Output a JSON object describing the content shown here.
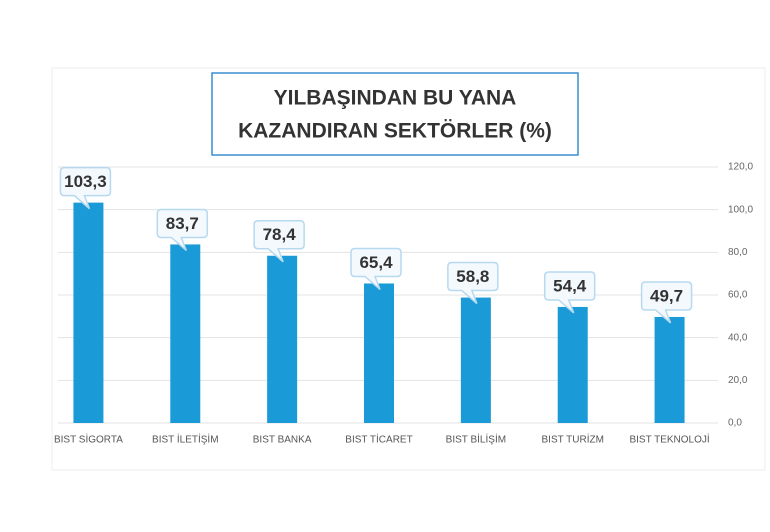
{
  "chart_data": {
    "type": "bar",
    "title": [
      "YILBAŞINDAN BU YANA",
      "KAZANDIRAN SEKTÖRLER  (%)"
    ],
    "categories": [
      "BIST SİGORTA",
      "BIST İLETİŞİM",
      "BIST BANKA",
      "BIST TİCARET",
      "BIST BİLİŞİM",
      "BIST TURİZM",
      "BIST TEKNOLOJİ"
    ],
    "values": [
      103.3,
      83.7,
      78.4,
      65.4,
      58.8,
      54.4,
      49.7
    ],
    "value_labels": [
      "103,3",
      "83,7",
      "78,4",
      "65,4",
      "58,8",
      "54,4",
      "49,7"
    ],
    "color": "#1a9ad6",
    "ylim": [
      0,
      120
    ],
    "yticks": [
      {
        "value": 0,
        "label": "0,0"
      },
      {
        "value": 20,
        "label": "20,0"
      },
      {
        "value": 40,
        "label": "40,0"
      },
      {
        "value": 60,
        "label": "60,0"
      },
      {
        "value": 80,
        "label": "80,0"
      },
      {
        "value": 100,
        "label": "100,0"
      },
      {
        "value": 120,
        "label": "120,0"
      }
    ],
    "grid": true
  }
}
